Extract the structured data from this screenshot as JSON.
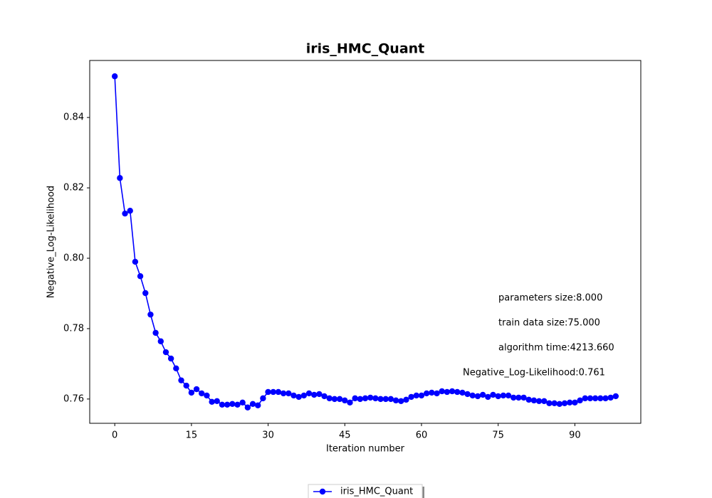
{
  "chart_data": {
    "type": "line",
    "title": "iris_HMC_Quant",
    "x_label": "Iteration number",
    "y_label": "Negative_Log-Likelihood",
    "x": [
      0,
      1,
      2,
      3,
      4,
      5,
      6,
      7,
      8,
      9,
      10,
      11,
      12,
      13,
      14,
      15,
      16,
      17,
      18,
      19,
      20,
      21,
      22,
      23,
      24,
      25,
      26,
      27,
      28,
      29,
      30,
      31,
      32,
      33,
      34,
      35,
      36,
      37,
      38,
      39,
      40,
      41,
      42,
      43,
      44,
      45,
      46,
      47,
      48,
      49,
      50,
      51,
      52,
      53,
      54,
      55,
      56,
      57,
      58,
      59,
      60,
      61,
      62,
      63,
      64,
      65,
      66,
      67,
      68,
      69,
      70,
      71,
      72,
      73,
      74,
      75,
      76,
      77,
      78,
      79,
      80,
      81,
      82,
      83,
      84,
      85,
      86,
      87,
      88,
      89,
      90,
      91,
      92,
      93,
      94,
      95,
      96,
      97,
      98
    ],
    "series": [
      {
        "name": "iris_HMC_Quant",
        "color": "#0000ff",
        "values": [
          0.8517,
          0.8228,
          0.8127,
          0.8135,
          0.799,
          0.7949,
          0.7901,
          0.784,
          0.7788,
          0.7764,
          0.7733,
          0.7715,
          0.7687,
          0.7653,
          0.7638,
          0.7618,
          0.7628,
          0.7616,
          0.761,
          0.7592,
          0.7594,
          0.7584,
          0.7584,
          0.7586,
          0.7584,
          0.759,
          0.7576,
          0.7586,
          0.7582,
          0.7602,
          0.762,
          0.762,
          0.762,
          0.7616,
          0.7616,
          0.761,
          0.7606,
          0.761,
          0.7616,
          0.7612,
          0.7614,
          0.7608,
          0.7602,
          0.76,
          0.76,
          0.7596,
          0.759,
          0.7602,
          0.76,
          0.7602,
          0.7604,
          0.7602,
          0.76,
          0.76,
          0.76,
          0.7596,
          0.7594,
          0.7598,
          0.7606,
          0.761,
          0.761,
          0.7616,
          0.7618,
          0.7616,
          0.7622,
          0.762,
          0.7622,
          0.762,
          0.7618,
          0.7614,
          0.761,
          0.7608,
          0.7612,
          0.7606,
          0.7612,
          0.7608,
          0.761,
          0.761,
          0.7604,
          0.7604,
          0.7604,
          0.7598,
          0.7596,
          0.7594,
          0.7594,
          0.7588,
          0.7588,
          0.7586,
          0.7588,
          0.759,
          0.759,
          0.7596,
          0.7602,
          0.7602,
          0.7602,
          0.7602,
          0.7602,
          0.7604,
          0.7608
        ]
      }
    ],
    "xlim": [
      -4.9,
      102.9
    ],
    "ylim": [
      0.7531,
      0.8562
    ],
    "xticks": [
      0,
      15,
      30,
      45,
      60,
      75,
      90
    ],
    "yticks": [
      0.76,
      0.78,
      {
        "value": 0.8,
        "label": "0.80"
      },
      0.82,
      0.84
    ],
    "annotations": [
      "parameters size:8.000",
      "train data size:75.000",
      "algorithm time:4213.660",
      "Negative_Log-Likelihood:0.761"
    ],
    "legend": "lower center"
  }
}
